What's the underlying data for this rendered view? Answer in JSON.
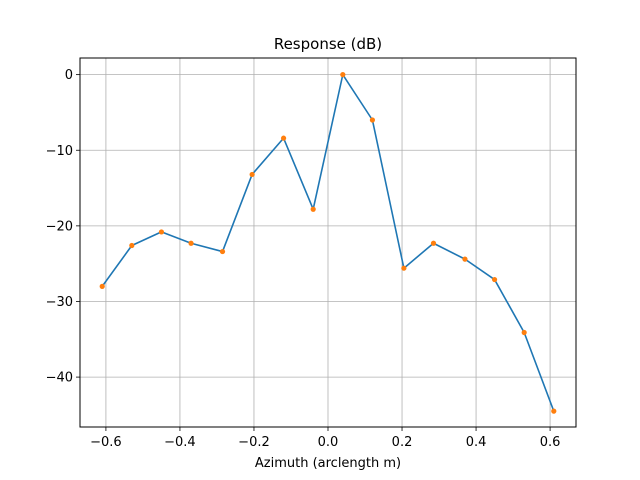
{
  "chart_data": {
    "type": "line",
    "title": "Response (dB)",
    "xlabel": "Azimuth (arclength m)",
    "ylabel": "",
    "xlim": [
      -0.67,
      0.67
    ],
    "ylim": [
      -46.6,
      2.2
    ],
    "xticks": [
      -0.6,
      -0.4,
      -0.2,
      0.0,
      0.2,
      0.4,
      0.6
    ],
    "xtick_labels": [
      "−0.6",
      "−0.4",
      "−0.2",
      "0.0",
      "0.2",
      "0.4",
      "0.6"
    ],
    "yticks": [
      0,
      -10,
      -20,
      -30,
      -40
    ],
    "ytick_labels": [
      "0",
      "−10",
      "−20",
      "−30",
      "−40"
    ],
    "grid": true,
    "line_color": "#1f77b4",
    "marker_color": "#ff7f0e",
    "series": [
      {
        "x": [
          -0.61,
          -0.53,
          -0.45,
          -0.37,
          -0.285,
          -0.205,
          -0.12,
          -0.04,
          0.04,
          0.12,
          0.205,
          0.285,
          0.37,
          0.45,
          0.53,
          0.61
        ],
        "y": [
          -28.0,
          -22.6,
          -20.8,
          -22.3,
          -23.4,
          -13.2,
          -8.4,
          -17.8,
          0.0,
          -6.0,
          -25.6,
          -22.3,
          -24.4,
          -27.1,
          -34.1,
          -44.5
        ]
      }
    ]
  }
}
